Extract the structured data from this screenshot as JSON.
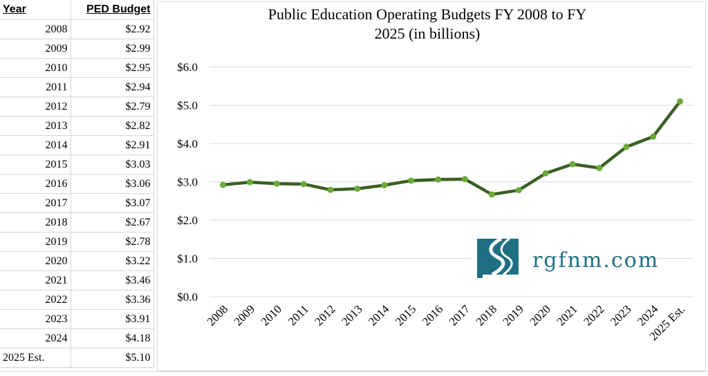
{
  "table": {
    "header_year": "Year",
    "header_budget": "PED Budget",
    "rows": [
      {
        "year": "2008",
        "value": "$2.92"
      },
      {
        "year": "2009",
        "value": "$2.99"
      },
      {
        "year": "2010",
        "value": "$2.95"
      },
      {
        "year": "2011",
        "value": "$2.94"
      },
      {
        "year": "2012",
        "value": "$2.79"
      },
      {
        "year": "2013",
        "value": "$2.82"
      },
      {
        "year": "2014",
        "value": "$2.91"
      },
      {
        "year": "2015",
        "value": "$3.03"
      },
      {
        "year": "2016",
        "value": "$3.06"
      },
      {
        "year": "2017",
        "value": "$3.07"
      },
      {
        "year": "2018",
        "value": "$2.67"
      },
      {
        "year": "2019",
        "value": "$2.78"
      },
      {
        "year": "2020",
        "value": "$3.22"
      },
      {
        "year": "2021",
        "value": "$3.46"
      },
      {
        "year": "2022",
        "value": "$3.36"
      },
      {
        "year": "2023",
        "value": "$3.91"
      },
      {
        "year": "2024",
        "value": "$4.18"
      },
      {
        "year": "2025 Est.",
        "value": "$5.10"
      }
    ]
  },
  "chart_data": {
    "type": "line",
    "title": "Public Education Operating Budgets FY 2008 to FY 2025 (in billions)",
    "title_line1": "Public Education Operating Budgets FY 2008 to FY",
    "title_line2": "2025 (in billions)",
    "categories": [
      "2008",
      "2009",
      "2010",
      "2011",
      "2012",
      "2013",
      "2014",
      "2015",
      "2016",
      "2017",
      "2018",
      "2019",
      "2020",
      "2021",
      "2022",
      "2023",
      "2024",
      "2025 Est."
    ],
    "values": [
      2.92,
      2.99,
      2.95,
      2.94,
      2.79,
      2.82,
      2.91,
      3.03,
      3.06,
      3.07,
      2.67,
      2.78,
      3.22,
      3.46,
      3.36,
      3.91,
      4.18,
      5.1
    ],
    "ylim": [
      0,
      6
    ],
    "yticks": [
      0,
      1,
      2,
      3,
      4,
      5,
      6
    ],
    "ytick_labels": [
      "$0.0",
      "$1.0",
      "$2.0",
      "$3.0",
      "$4.0",
      "$5.0",
      "$6.0"
    ],
    "xlabel": "",
    "ylabel": "",
    "grid": true,
    "line_color": "#3a5f23",
    "marker_color": "#6aaa3a"
  },
  "logo": {
    "text": "rgfnm.com",
    "color": "#1f6f83"
  }
}
